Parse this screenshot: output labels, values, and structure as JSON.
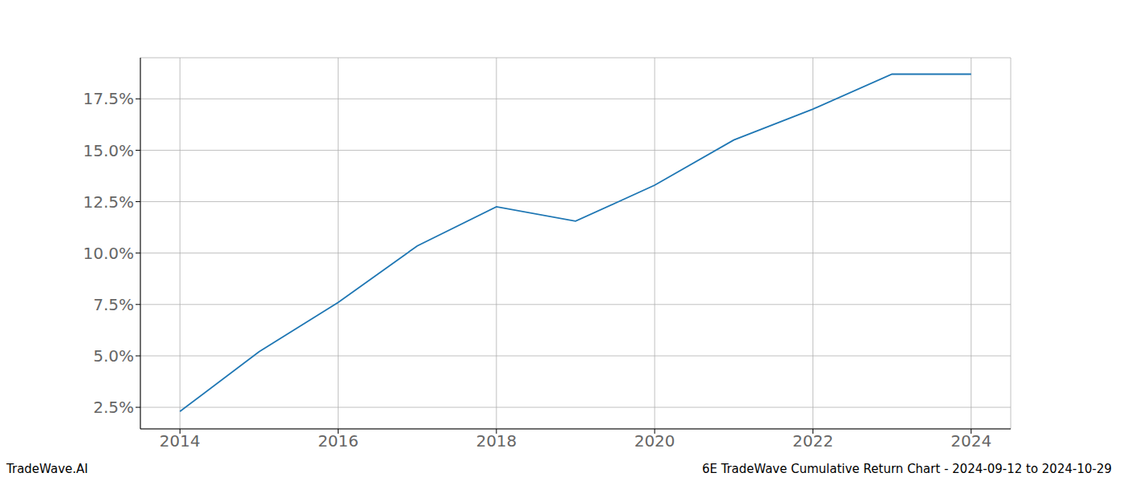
{
  "chart_data": {
    "type": "line",
    "annotations": [
      "TradeWave.AI",
      "6E TradeWave Cumulative Return Chart - 2024-09-12 to 2024-10-29"
    ],
    "x": [
      2014,
      2015,
      2016,
      2017,
      2018,
      2019,
      2020,
      2021,
      2022,
      2023,
      2024
    ],
    "values": [
      2.3,
      5.2,
      7.6,
      10.35,
      12.25,
      11.55,
      13.3,
      15.5,
      17.0,
      18.7,
      18.7
    ],
    "color": "#1f77b4",
    "xlim": [
      2013.5,
      2024.5
    ],
    "xticks": [
      2014,
      2016,
      2018,
      2020,
      2022,
      2024
    ],
    "ylim": [
      1.45,
      19.5
    ],
    "yticks": [
      {
        "value": 2.5,
        "label": "2.5%"
      },
      {
        "value": 5,
        "label": "5.0%"
      },
      {
        "value": 7.5,
        "label": "7.5%"
      },
      {
        "value": 10,
        "label": "10.0%"
      },
      {
        "value": 12.5,
        "label": "12.5%"
      },
      {
        "value": 15,
        "label": "15.0%"
      },
      {
        "value": 17.5,
        "label": "17.5%"
      }
    ],
    "grid": true
  }
}
